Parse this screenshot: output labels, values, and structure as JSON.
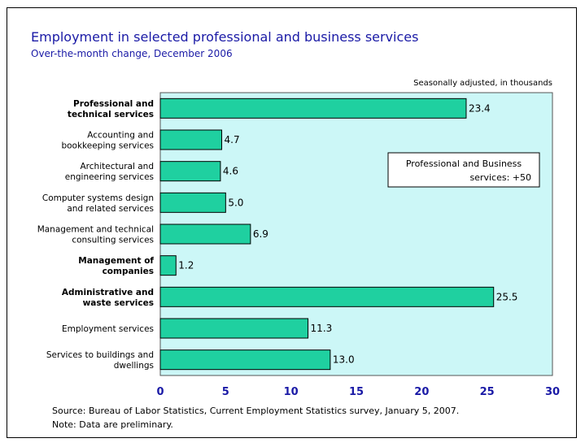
{
  "chart_data": {
    "type": "bar",
    "orientation": "horizontal",
    "title": "Employment in selected professional and business services",
    "subtitle": "Over-the-month change, December 2006",
    "units_note": "Seasonally adjusted, in thousands",
    "categories": [
      {
        "lines": [
          "Professional and",
          "technical services"
        ],
        "bold": true
      },
      {
        "lines": [
          "Accounting and",
          "bookkeeping services"
        ],
        "bold": false
      },
      {
        "lines": [
          "Architectural and",
          "engineering services"
        ],
        "bold": false
      },
      {
        "lines": [
          "Computer systems design",
          "and related services"
        ],
        "bold": false
      },
      {
        "lines": [
          "Management and technical",
          "consulting services"
        ],
        "bold": false
      },
      {
        "lines": [
          "Management of",
          "companies"
        ],
        "bold": true
      },
      {
        "lines": [
          "Administrative and",
          "waste services"
        ],
        "bold": true
      },
      {
        "lines": [
          "Employment services"
        ],
        "bold": false
      },
      {
        "lines": [
          "Services to buildings and",
          "dwellings"
        ],
        "bold": false
      }
    ],
    "values": [
      23.4,
      4.7,
      4.6,
      5.0,
      6.9,
      1.2,
      25.5,
      11.3,
      13.0
    ],
    "value_labels": [
      "23.4",
      "4.7",
      "4.6",
      "5.0",
      "6.9",
      "1.2",
      "25.5",
      "11.3",
      "13.0"
    ],
    "xlim": [
      0,
      30
    ],
    "xticks": [
      0,
      5,
      10,
      15,
      20,
      25,
      30
    ],
    "grid": false,
    "annotation": {
      "lines": [
        "Professional and Business",
        "services:  +50"
      ]
    },
    "colors": {
      "bar": "#1fd0a0",
      "plot_bg": "#ccf7f7",
      "axis_ticks": "#1a1aa6",
      "title": "#1a1aa6"
    }
  },
  "footer": {
    "source": "Source:  Bureau of Labor Statistics, Current Employment Statistics survey, January 5, 2007.",
    "note": "Note:  Data are preliminary."
  }
}
